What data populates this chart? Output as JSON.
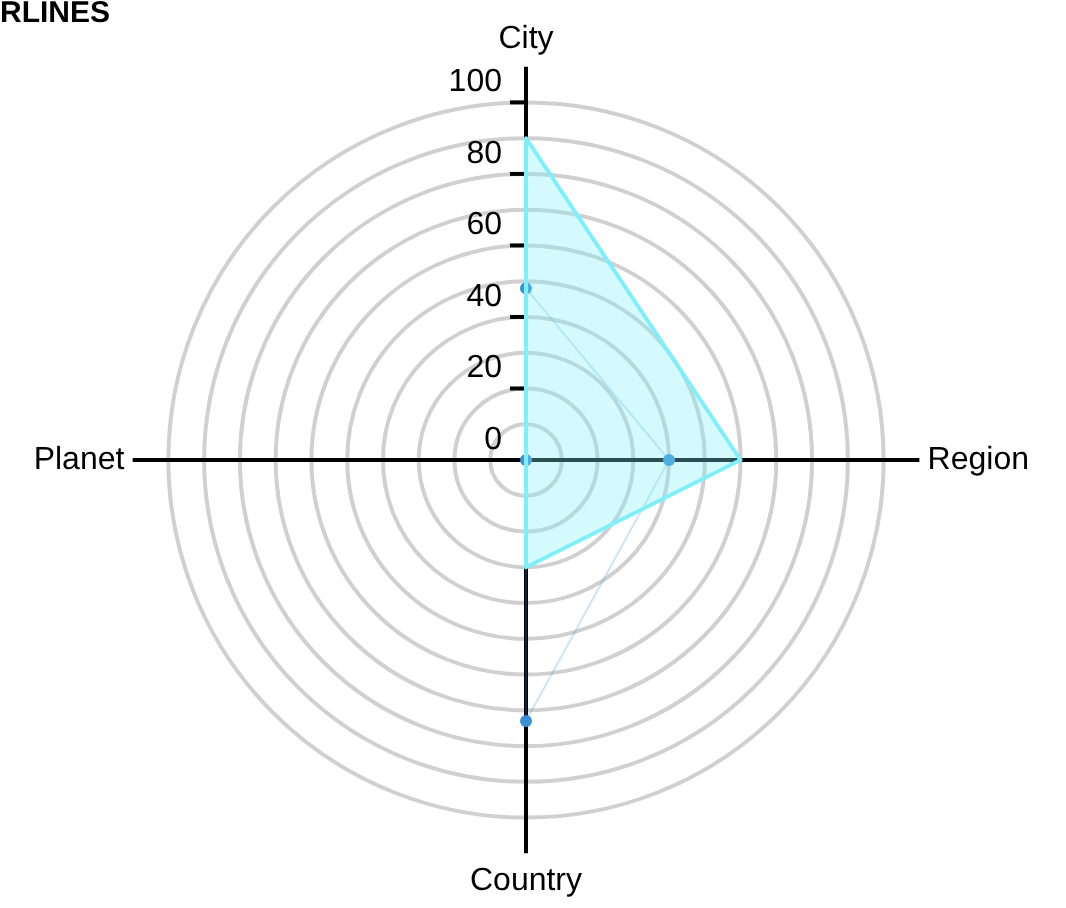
{
  "chart_data": {
    "type": "radar",
    "title": "RLINES",
    "categories": [
      "City",
      "Region",
      "Country",
      "Planet"
    ],
    "series": [
      {
        "color": "#7ff0fa",
        "values": [
          90,
          60,
          30,
          0
        ],
        "marker": "none"
      },
      {
        "color": "#3a8fd6",
        "values": [
          48,
          40,
          73,
          0
        ],
        "marker": "circle",
        "line_style": "none"
      }
    ],
    "ylim": [
      0,
      100
    ],
    "yticks": [
      0,
      20,
      40,
      60,
      80,
      100
    ],
    "grid": true,
    "legend": false
  }
}
